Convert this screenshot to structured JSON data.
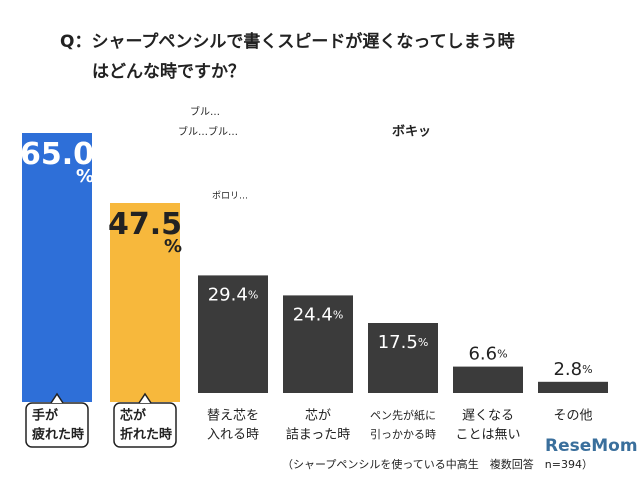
{
  "chart_data": {
    "type": "bar",
    "title": [
      "Q：シャープペンシルで書くスピードが遅くなってしまう時",
      "はどんな時ですか？"
    ],
    "categories": [
      [
        "手が",
        "疲れた時"
      ],
      [
        "芯が",
        "折れた時"
      ],
      [
        "替え芯を",
        "入れる時"
      ],
      [
        "芯が",
        "詰まった時"
      ],
      [
        "ペン先が紙に",
        "引っかかる時"
      ],
      [
        "遅くなる",
        "ことは無い"
      ],
      [
        "その他"
      ]
    ],
    "values": [
      65.0,
      47.5,
      29.4,
      24.4,
      17.5,
      6.6,
      2.8
    ],
    "value_labels": [
      "65.0%",
      "47.5%",
      "29.4%",
      "24.4%",
      "17.5%",
      "6.6%",
      "2.8%"
    ],
    "colors": [
      "#2e6fd8",
      "#f7b83c",
      "#3b3b3b",
      "#3b3b3b",
      "#3b3b3b",
      "#3b3b3b",
      "#3b3b3b"
    ],
    "ylim": [
      0,
      70
    ],
    "annotations": [
      "ブル…",
      "ブル…ブル…",
      "ポロリ…",
      "ボキッ"
    ],
    "footnote": "（シャープペンシルを使っている中高生　複数回答　n=394）",
    "logo": "ReseMom"
  }
}
